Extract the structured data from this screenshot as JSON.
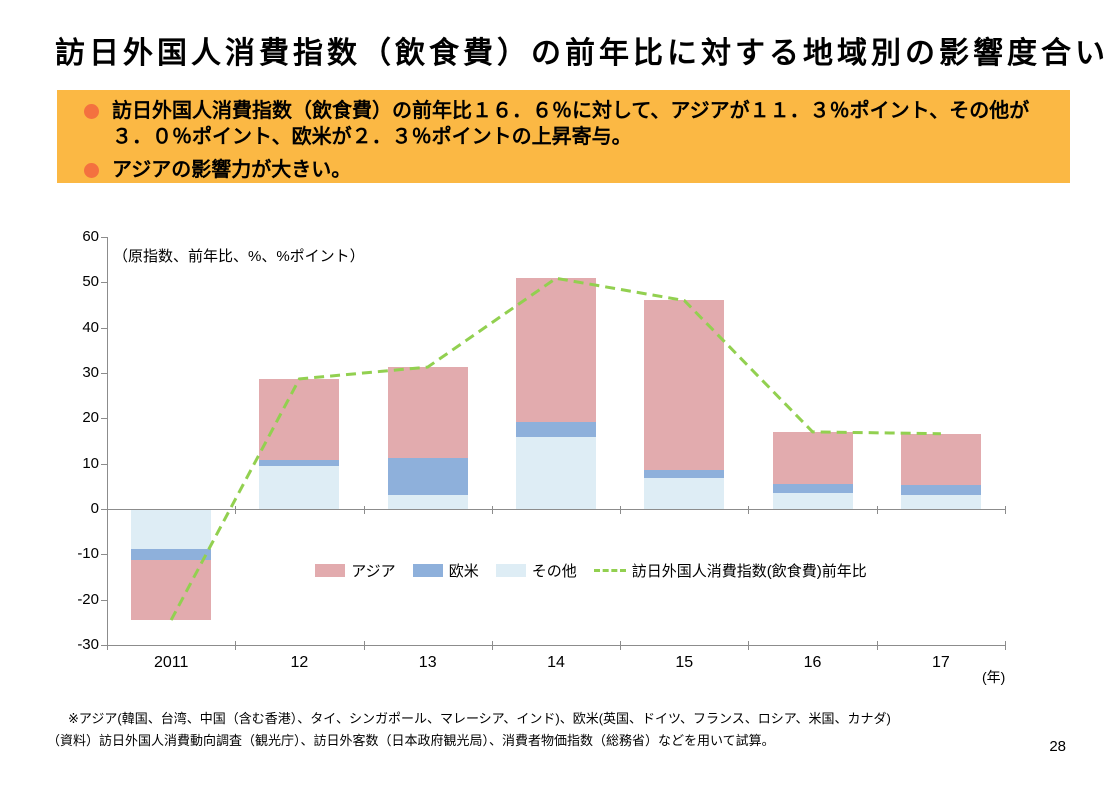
{
  "page": {
    "title": "訪日外国人消費指数（飲食費）の前年比に対する地域別の影響度合い",
    "page_number": "28"
  },
  "summary_box": {
    "bg_color": "#FBB844",
    "bullet_color": "#F4713F",
    "bullets": [
      "訪日外国人消費指数（飲食費）の前年比１６．６％に対して、アジアが１１．３％ポイント、その他が３．０％ポイント、欧米が２．３％ポイントの上昇寄与。",
      "アジアの影響力が大きい。"
    ]
  },
  "chart_data": {
    "type": "bar",
    "stacked": true,
    "unit_note": "（原指数、前年比、%、%ポイント）",
    "x_axis_unit": "(年)",
    "categories": [
      "2011",
      "12",
      "13",
      "14",
      "15",
      "16",
      "17"
    ],
    "series": [
      {
        "id": "asia",
        "name": "アジア",
        "color": "#E2ABAE",
        "values": [
          -13.2,
          18.0,
          20.0,
          31.6,
          37.5,
          11.5,
          11.3
        ]
      },
      {
        "id": "western",
        "name": "欧米",
        "color": "#8EB0DB",
        "values": [
          -2.4,
          1.2,
          8.3,
          3.5,
          1.7,
          2.0,
          2.3
        ]
      },
      {
        "id": "other",
        "name": "その他",
        "color": "#DEEDF5",
        "values": [
          -8.9,
          9.5,
          3.0,
          15.8,
          6.8,
          3.5,
          3.0
        ]
      }
    ],
    "line_series": {
      "id": "yoy-line",
      "name": "訪日外国人消費指数(飲食費)前年比",
      "color": "#92D050",
      "values": [
        -24.5,
        28.7,
        31.3,
        50.9,
        46.0,
        17.0,
        16.6
      ]
    },
    "ylim": [
      -30,
      60
    ],
    "ytick_step": 10,
    "axis_color": "#8C8C8C",
    "legend_position": "inside-bottom",
    "grid": false
  },
  "footnotes": [
    "※アジア(韓国、台湾、中国（含む香港）、タイ、シンガポール、マレーシア、インド)、欧米(英国、ドイツ、フランス、ロシア、米国、カナダ)",
    "（資料）訪日外国人消費動向調査（観光庁）、訪日外客数（日本政府観光局）、消費者物価指数（総務省）などを用いて試算。"
  ]
}
